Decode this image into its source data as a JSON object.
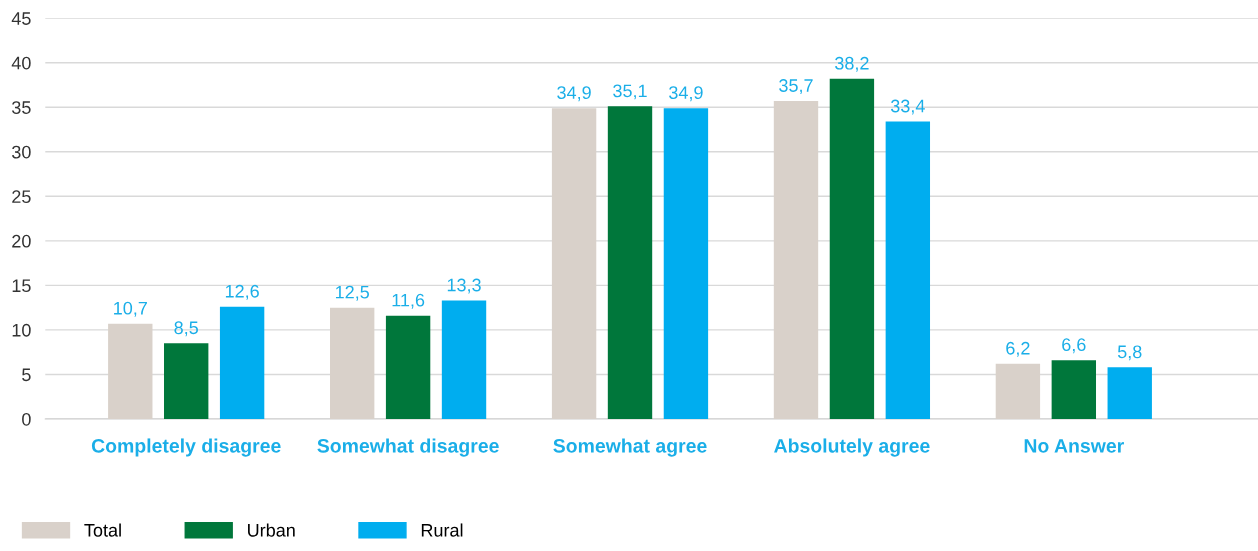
{
  "chart_data": {
    "type": "bar",
    "categories": [
      "Completely disagree",
      "Somewhat disagree",
      "Somewhat agree",
      "Absolutely agree",
      "No Answer"
    ],
    "series": [
      {
        "name": "Total",
        "color": "#d9d1ca",
        "values": [
          10.7,
          12.5,
          34.9,
          35.7,
          6.2
        ],
        "value_labels": [
          "10,7",
          "12,5",
          "34,9",
          "35,7",
          "6,2"
        ]
      },
      {
        "name": "Urban",
        "color": "#00773b",
        "values": [
          8.5,
          11.6,
          35.1,
          38.2,
          6.6
        ],
        "value_labels": [
          "8,5",
          "11,6",
          "35,1",
          "38,2",
          "6,6"
        ]
      },
      {
        "name": "Rural",
        "color": "#00adef",
        "values": [
          12.6,
          13.3,
          34.9,
          33.4,
          5.8
        ],
        "value_labels": [
          "12,6",
          "13,3",
          "34,9",
          "33,4",
          "5,8"
        ]
      }
    ],
    "ylim": [
      0,
      45
    ],
    "yticks": [
      0,
      5,
      10,
      15,
      20,
      25,
      30,
      35,
      40,
      45
    ],
    "grid": "y",
    "legend": "bottom left"
  }
}
